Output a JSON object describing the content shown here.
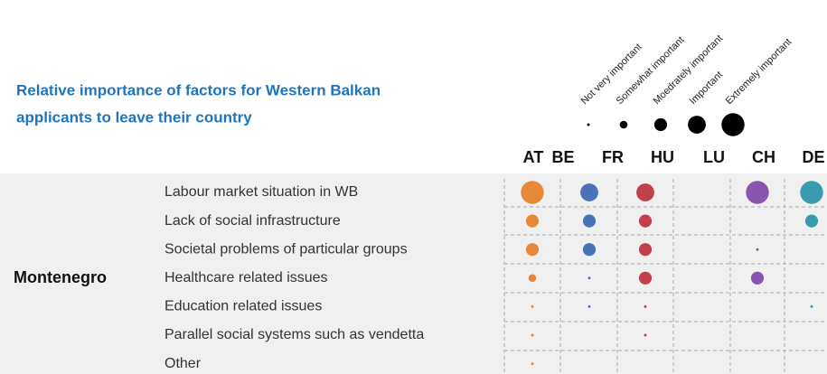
{
  "chart_data": {
    "type": "dot-matrix",
    "title": [
      "Relative importance of factors for Western Balkan",
      "applicants to leave their country"
    ],
    "size_legend": {
      "labels": [
        "Not very important",
        "Somewhat important",
        "Moedrately important",
        "Important",
        "Extremely important"
      ],
      "values": [
        1,
        2,
        3,
        4,
        5
      ]
    },
    "group": "Montenegro",
    "rows": [
      "Labour market situation in WB",
      "Lack of social infrastructure",
      "Societal problems of particular groups",
      "Healthcare related issues",
      "Education related issues",
      "Parallel social systems such as vendetta",
      "Other"
    ],
    "series": [
      {
        "name": "AT",
        "color": "#e8893a",
        "values": [
          5,
          3,
          3,
          2,
          1,
          1,
          1
        ]
      },
      {
        "name": "BE",
        "color": "#4a72b8",
        "values": [
          4,
          3,
          3,
          1,
          1,
          null,
          null
        ]
      },
      {
        "name": "FR",
        "values": [
          null,
          null,
          null,
          null,
          null,
          null,
          null
        ]
      },
      {
        "name": "HU",
        "color": "#c0414a",
        "values": [
          4,
          3,
          3,
          3,
          1,
          1,
          null
        ]
      },
      {
        "name": "LU",
        "values": [
          null,
          null,
          null,
          null,
          null,
          null,
          null
        ]
      },
      {
        "name": "CH",
        "color": "#8a55b0",
        "values": [
          5,
          null,
          1,
          3,
          null,
          null,
          null
        ]
      },
      {
        "name": "DE",
        "color": "#3a9bb0",
        "values": [
          5,
          3,
          null,
          null,
          1,
          null,
          null
        ]
      }
    ]
  }
}
